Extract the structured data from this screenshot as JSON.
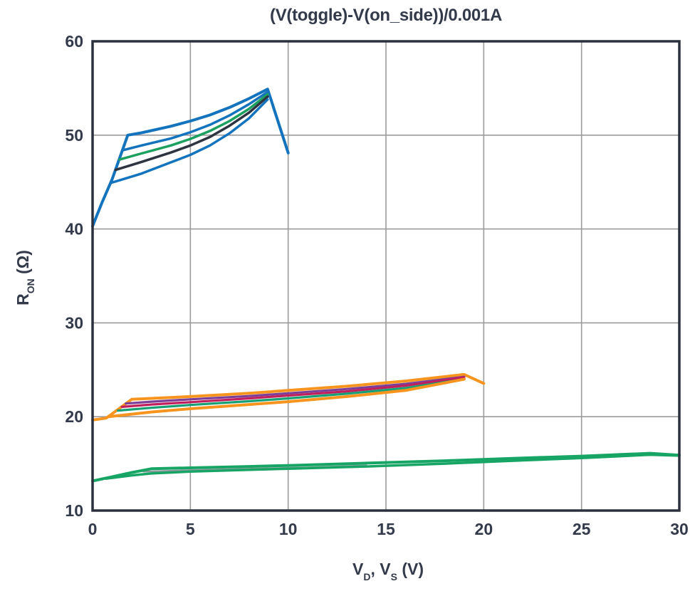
{
  "chart_data": {
    "type": "line",
    "title": "(V(toggle)-V(on_side))/0.001A",
    "xlabel_parts": [
      {
        "t": "V"
      },
      {
        "sub": "D"
      },
      {
        "t": ", V"
      },
      {
        "sub": "S"
      },
      {
        "t": " (V)"
      }
    ],
    "ylabel_parts": [
      {
        "t": "R"
      },
      {
        "sub": "ON"
      },
      {
        "t": " (Ω)"
      }
    ],
    "xlim": [
      0,
      30
    ],
    "ylim": [
      10,
      60
    ],
    "xticks": [
      "0",
      "5",
      "10",
      "15",
      "20",
      "25",
      "30"
    ],
    "xtick_values": [
      0,
      5,
      10,
      15,
      20,
      25,
      30
    ],
    "yticks": [
      "10",
      "20",
      "30",
      "40",
      "50",
      "60"
    ],
    "ytick_values": [
      10,
      20,
      30,
      40,
      50,
      60
    ],
    "grid": true,
    "legend_position": "none",
    "grid_color": "#9b9b9b",
    "axis_color": "#2b303c",
    "background_color": "#ffffff",
    "series": [
      {
        "name": "group1-blue-upper-envelope",
        "color": "#1374bd",
        "width": 4,
        "points": [
          [
            0,
            40.3
          ],
          [
            0.5,
            42.9
          ],
          [
            1.0,
            45.3
          ],
          [
            1.8,
            50.0
          ],
          [
            2.5,
            50.25
          ],
          [
            4,
            50.95
          ],
          [
            5,
            51.5
          ],
          [
            6,
            52.15
          ],
          [
            7,
            52.95
          ],
          [
            8,
            53.9
          ],
          [
            8.95,
            54.9
          ],
          [
            10,
            48.1
          ]
        ]
      },
      {
        "name": "group1-blue-second",
        "color": "#1374bd",
        "width": 3.5,
        "points": [
          [
            1.55,
            48.4
          ],
          [
            2.5,
            48.9
          ],
          [
            4,
            49.65
          ],
          [
            5,
            50.3
          ],
          [
            6,
            51.1
          ],
          [
            7,
            52.1
          ],
          [
            8,
            53.3
          ],
          [
            8.95,
            54.6
          ]
        ]
      },
      {
        "name": "group1-green",
        "color": "#1ca05f",
        "width": 3.5,
        "points": [
          [
            1.38,
            47.4
          ],
          [
            2.5,
            48.05
          ],
          [
            4,
            48.9
          ],
          [
            5,
            49.6
          ],
          [
            6,
            50.45
          ],
          [
            7,
            51.5
          ],
          [
            8,
            52.8
          ],
          [
            8.95,
            54.35
          ]
        ]
      },
      {
        "name": "group1-black",
        "color": "#2e3440",
        "width": 3.5,
        "points": [
          [
            1.18,
            46.3
          ],
          [
            2.5,
            47.15
          ],
          [
            4,
            48.15
          ],
          [
            5,
            48.9
          ],
          [
            6,
            49.8
          ],
          [
            7,
            51.0
          ],
          [
            8,
            52.4
          ],
          [
            8.95,
            54.1
          ]
        ]
      },
      {
        "name": "group1-blue-lower-envelope",
        "color": "#1374bd",
        "width": 3.5,
        "points": [
          [
            0.92,
            44.9
          ],
          [
            2.5,
            45.9
          ],
          [
            4,
            47.1
          ],
          [
            5,
            47.9
          ],
          [
            6,
            48.9
          ],
          [
            7,
            50.2
          ],
          [
            8,
            51.8
          ],
          [
            8.95,
            53.8
          ]
        ]
      },
      {
        "name": "group2-orange-upper-envelope",
        "color": "#f7941e",
        "width": 4,
        "points": [
          [
            0,
            19.65
          ],
          [
            0.7,
            19.85
          ],
          [
            2,
            21.85
          ],
          [
            3,
            21.95
          ],
          [
            5,
            22.15
          ],
          [
            8,
            22.5
          ],
          [
            10,
            22.8
          ],
          [
            13,
            23.25
          ],
          [
            16,
            23.8
          ],
          [
            19,
            24.5
          ],
          [
            20,
            23.55
          ]
        ]
      },
      {
        "name": "group2-purple",
        "color": "#7c3f98",
        "width": 3.2,
        "points": [
          [
            1.7,
            21.4
          ],
          [
            3,
            21.6
          ],
          [
            5,
            21.85
          ],
          [
            8,
            22.2
          ],
          [
            10,
            22.5
          ],
          [
            13,
            22.95
          ],
          [
            16,
            23.5
          ],
          [
            19,
            24.25
          ]
        ]
      },
      {
        "name": "group2-crimson",
        "color": "#c01f5e",
        "width": 3.2,
        "points": [
          [
            1.5,
            21.05
          ],
          [
            3,
            21.3
          ],
          [
            5,
            21.55
          ],
          [
            8,
            21.95
          ],
          [
            10,
            22.25
          ],
          [
            13,
            22.7
          ],
          [
            16,
            23.3
          ],
          [
            19,
            24.2
          ]
        ]
      },
      {
        "name": "group2-teal",
        "color": "#16a074",
        "width": 3.2,
        "points": [
          [
            1.3,
            20.65
          ],
          [
            3,
            20.95
          ],
          [
            5,
            21.25
          ],
          [
            8,
            21.65
          ],
          [
            10,
            21.95
          ],
          [
            13,
            22.45
          ],
          [
            16,
            23.05
          ],
          [
            19,
            24.0
          ]
        ]
      },
      {
        "name": "group2-orange-lower-envelope",
        "color": "#f7941e",
        "width": 4,
        "points": [
          [
            0.8,
            20.0
          ],
          [
            3,
            20.5
          ],
          [
            5,
            20.85
          ],
          [
            8,
            21.3
          ],
          [
            10,
            21.6
          ],
          [
            13,
            22.15
          ],
          [
            16,
            22.8
          ],
          [
            19,
            24.0
          ]
        ]
      },
      {
        "name": "group3-gray",
        "color": "#8f969c",
        "width": 2.4,
        "points": [
          [
            2.6,
            14.15
          ],
          [
            5,
            14.3
          ],
          [
            8,
            14.45
          ],
          [
            11,
            14.6
          ],
          [
            14,
            14.8
          ]
        ]
      },
      {
        "name": "group3-green-lower-envelope",
        "color": "#17a566",
        "width": 3.5,
        "points": [
          [
            0.7,
            13.4
          ],
          [
            2,
            13.75
          ],
          [
            3,
            13.95
          ],
          [
            5,
            14.15
          ],
          [
            8,
            14.35
          ],
          [
            10,
            14.45
          ],
          [
            14,
            14.7
          ],
          [
            18,
            15.0
          ],
          [
            22,
            15.35
          ],
          [
            25,
            15.6
          ],
          [
            28.5,
            15.95
          ],
          [
            30,
            15.85
          ]
        ]
      },
      {
        "name": "group3-green-upper-envelope",
        "color": "#17a566",
        "width": 4,
        "points": [
          [
            0,
            13.15
          ],
          [
            1,
            13.6
          ],
          [
            2,
            14.05
          ],
          [
            3,
            14.45
          ],
          [
            5,
            14.55
          ],
          [
            8,
            14.7
          ],
          [
            10,
            14.8
          ],
          [
            14,
            15.05
          ],
          [
            18,
            15.3
          ],
          [
            22,
            15.6
          ],
          [
            25,
            15.8
          ],
          [
            28.5,
            16.1
          ],
          [
            30,
            15.9
          ]
        ]
      }
    ]
  }
}
